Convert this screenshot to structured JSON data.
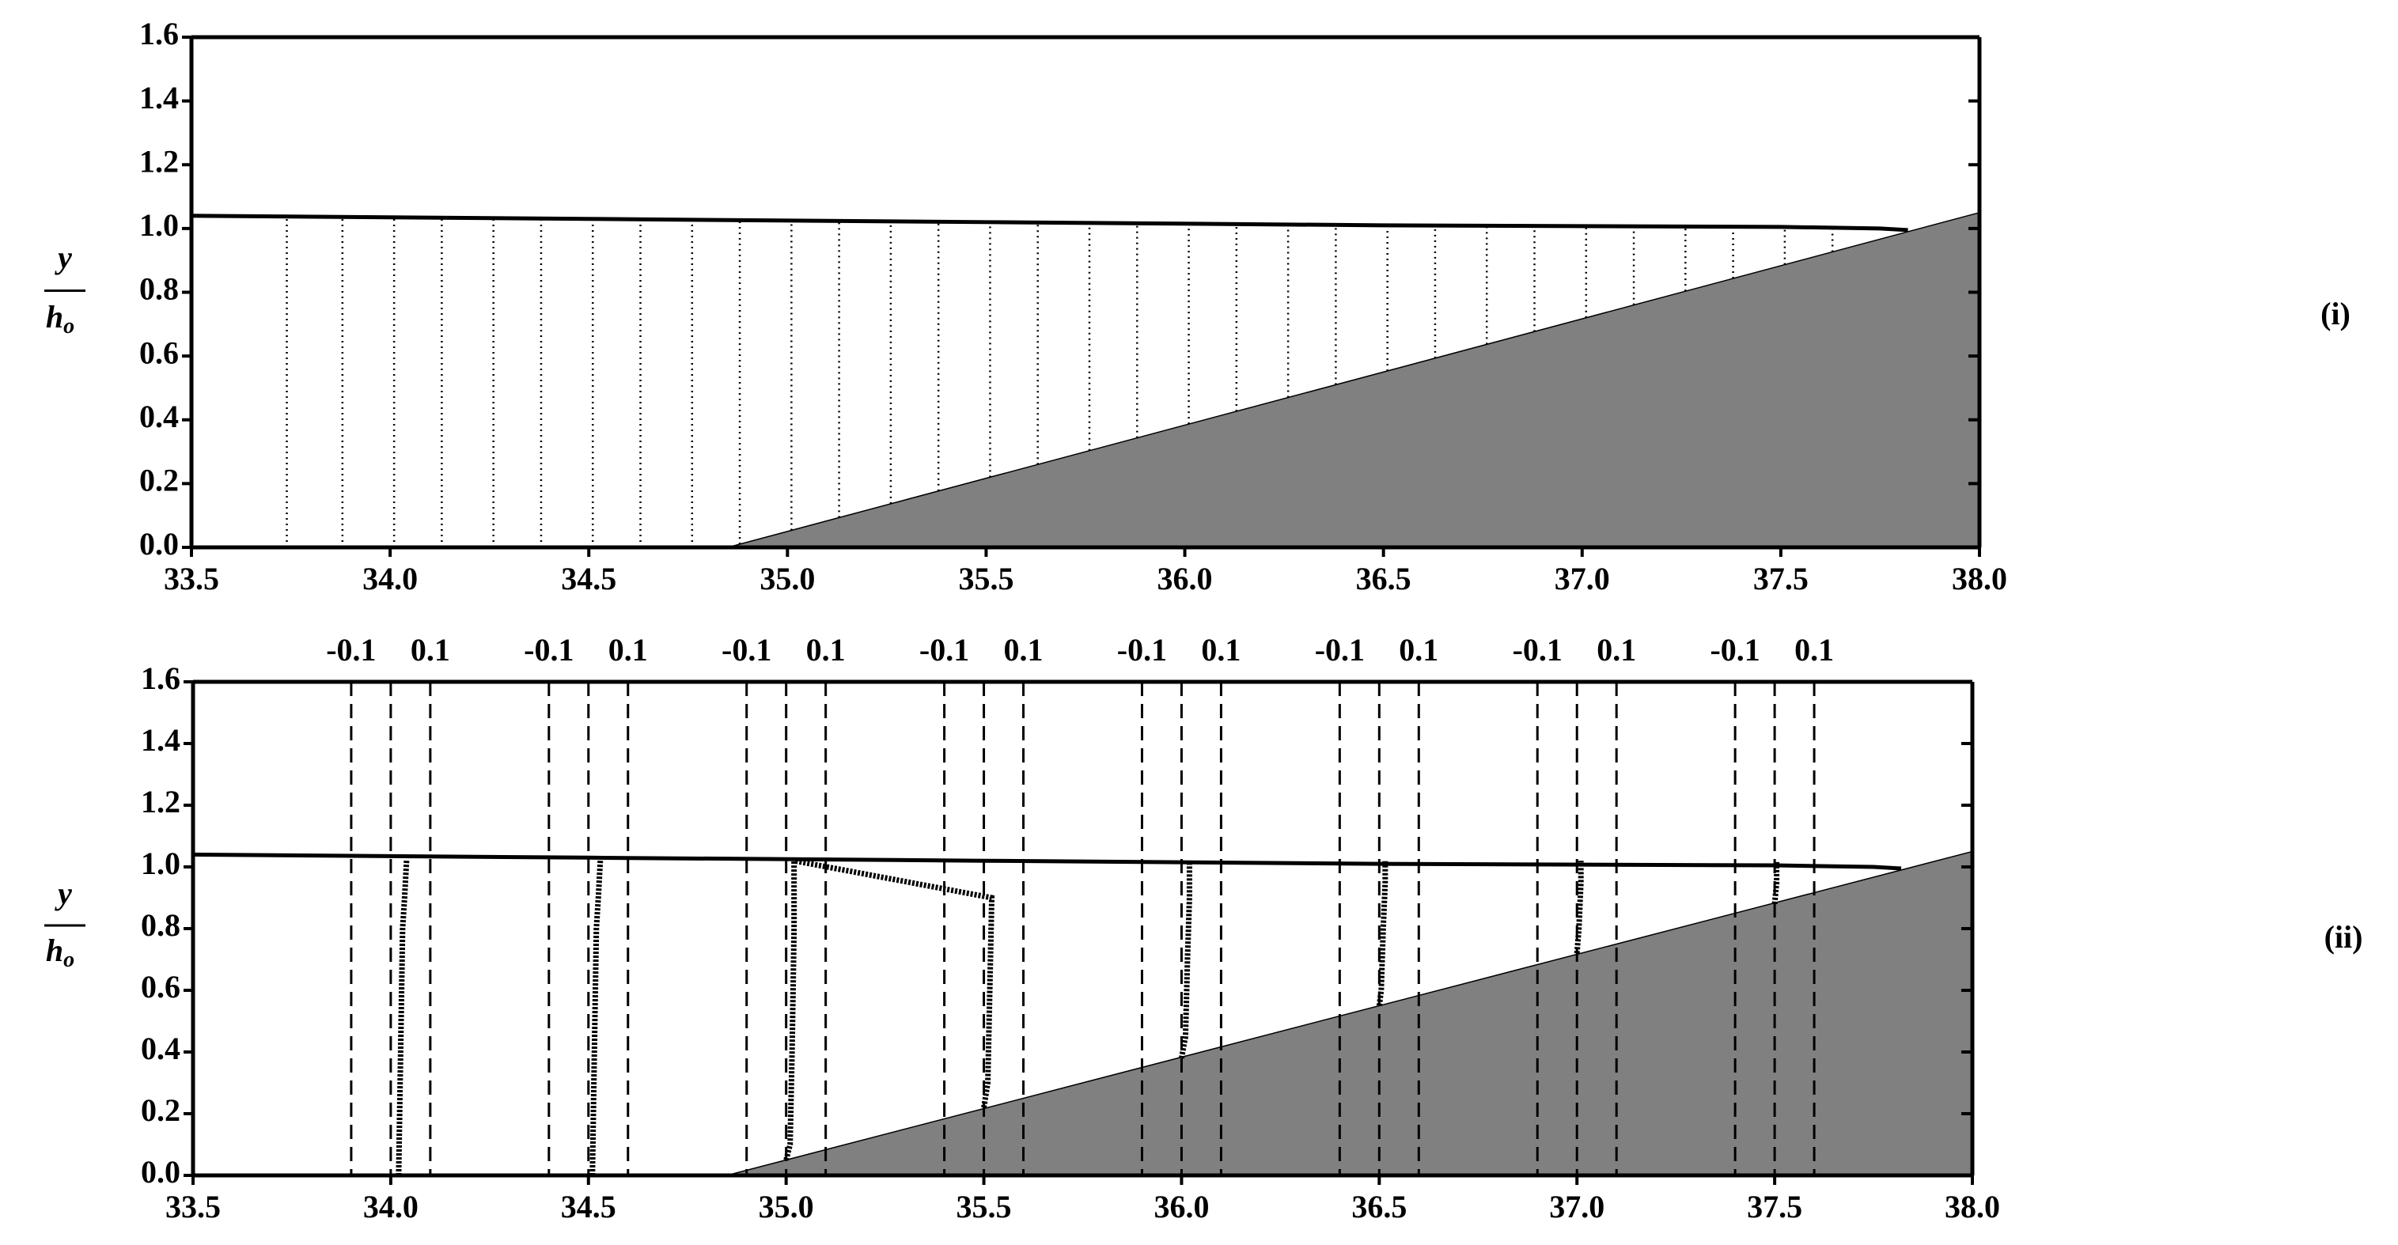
{
  "chart_data": [
    {
      "type": "line",
      "panel_label": "(i)",
      "ylabel": "y",
      "ylabel_denominator": "h",
      "ylabel_subscript": "o",
      "xlim": [
        33.5,
        38.0
      ],
      "xticks": [
        33.5,
        {
          "value": 34,
          "label": "34.0"
        },
        34.5,
        {
          "value": 35,
          "label": "35.0"
        },
        35.5,
        {
          "value": 36,
          "label": "36.0"
        },
        36.5,
        {
          "value": 37,
          "label": "37.0"
        },
        37.5,
        {
          "value": 38,
          "label": "38.0"
        }
      ],
      "ylim": [
        0,
        1.6
      ],
      "yticks": [
        {
          "value": 0,
          "label": "0.0"
        },
        0.2,
        0.4,
        0.6,
        0.8,
        {
          "value": 1,
          "label": "1.0"
        },
        1.2,
        1.4,
        1.6
      ],
      "surface": {
        "color": "#000000",
        "x": [
          33.5,
          34.5,
          35.5,
          36.5,
          37.5,
          37.75,
          37.82
        ],
        "y": [
          1.04,
          1.03,
          1.02,
          1.01,
          1.005,
          1.0,
          0.995
        ]
      },
      "bed": {
        "color": "#808080",
        "x": [
          34.85,
          38.0
        ],
        "y": [
          0,
          1.05
        ]
      },
      "profile_x": [
        33.74,
        33.88,
        34.01,
        34.13,
        34.26,
        34.38,
        34.51,
        34.63,
        34.76,
        34.88,
        35.01,
        35.13,
        35.26,
        35.38,
        35.51,
        35.63,
        35.76,
        35.88,
        36.01,
        36.13,
        36.26,
        36.38,
        36.51,
        36.63,
        36.76,
        36.88,
        37.01,
        37.13,
        37.26,
        37.38,
        37.51,
        37.63
      ]
    },
    {
      "type": "line",
      "panel_label": "(ii)",
      "ylabel": "y",
      "ylabel_denominator": "h",
      "ylabel_subscript": "o",
      "xlim": [
        33.5,
        38.0
      ],
      "xticks": [
        33.5,
        {
          "value": 34,
          "label": "34.0"
        },
        34.5,
        {
          "value": 35,
          "label": "35.0"
        },
        35.5,
        {
          "value": 36,
          "label": "36.0"
        },
        36.5,
        {
          "value": 37,
          "label": "37.0"
        },
        37.5,
        {
          "value": 38,
          "label": "38.0"
        }
      ],
      "ylim": [
        0,
        1.6
      ],
      "yticks": [
        {
          "value": 0,
          "label": "0.0"
        },
        0.2,
        0.4,
        0.6,
        0.8,
        {
          "value": 1,
          "label": "1.0"
        },
        1.2,
        1.4,
        1.6
      ],
      "surface": {
        "color": "#000000",
        "x": [
          33.5,
          34.5,
          35.5,
          36.5,
          37.5,
          37.75,
          37.82
        ],
        "y": [
          1.04,
          1.03,
          1.02,
          1.01,
          1.005,
          1.0,
          0.995
        ]
      },
      "bed": {
        "color": "#808080",
        "x": [
          34.85,
          38.0
        ],
        "y": [
          0,
          1.05
        ]
      },
      "stations": [
        34.0,
        34.5,
        35.0,
        35.5,
        36.0,
        36.5,
        37.0,
        37.5
      ],
      "offsets": [
        {
          "value": -0.1,
          "label": "-0.1"
        },
        {
          "value": 0.1,
          "label": "0.1"
        }
      ],
      "profiles": [
        {
          "x": [
            34.02,
            34.025,
            34.03,
            34.035,
            34.04
          ],
          "y": [
            0.0,
            0.4,
            0.8,
            0.9,
            1.02
          ]
        },
        {
          "x": [
            34.51,
            34.515,
            34.52,
            34.525,
            34.53
          ],
          "y": [
            0.0,
            0.4,
            0.8,
            0.9,
            1.02
          ]
        },
        {
          "x": [
            35.0,
            35.01,
            35.015,
            35.02,
            35.02
          ],
          "y": [
            0.05,
            0.1,
            0.4,
            0.8,
            1.02
          ]
        },
        {
          "x": [
            35.5,
            35.51,
            35.515,
            35.52,
            35.02
          ],
          "y": [
            0.22,
            0.3,
            0.6,
            0.9,
            1.02
          ]
        },
        {
          "x": [
            36.0,
            36.01,
            36.015,
            36.02,
            36.02
          ],
          "y": [
            0.38,
            0.45,
            0.7,
            0.9,
            1.02
          ]
        },
        {
          "x": [
            36.5,
            36.505,
            36.51,
            36.515,
            36.515
          ],
          "y": [
            0.55,
            0.6,
            0.8,
            0.95,
            1.02
          ]
        },
        {
          "x": [
            37.0,
            37.005,
            37.01,
            37.01
          ],
          "y": [
            0.72,
            0.8,
            0.95,
            1.02
          ]
        },
        {
          "x": [
            37.5,
            37.505,
            37.505
          ],
          "y": [
            0.88,
            0.95,
            1.02
          ]
        }
      ]
    }
  ]
}
